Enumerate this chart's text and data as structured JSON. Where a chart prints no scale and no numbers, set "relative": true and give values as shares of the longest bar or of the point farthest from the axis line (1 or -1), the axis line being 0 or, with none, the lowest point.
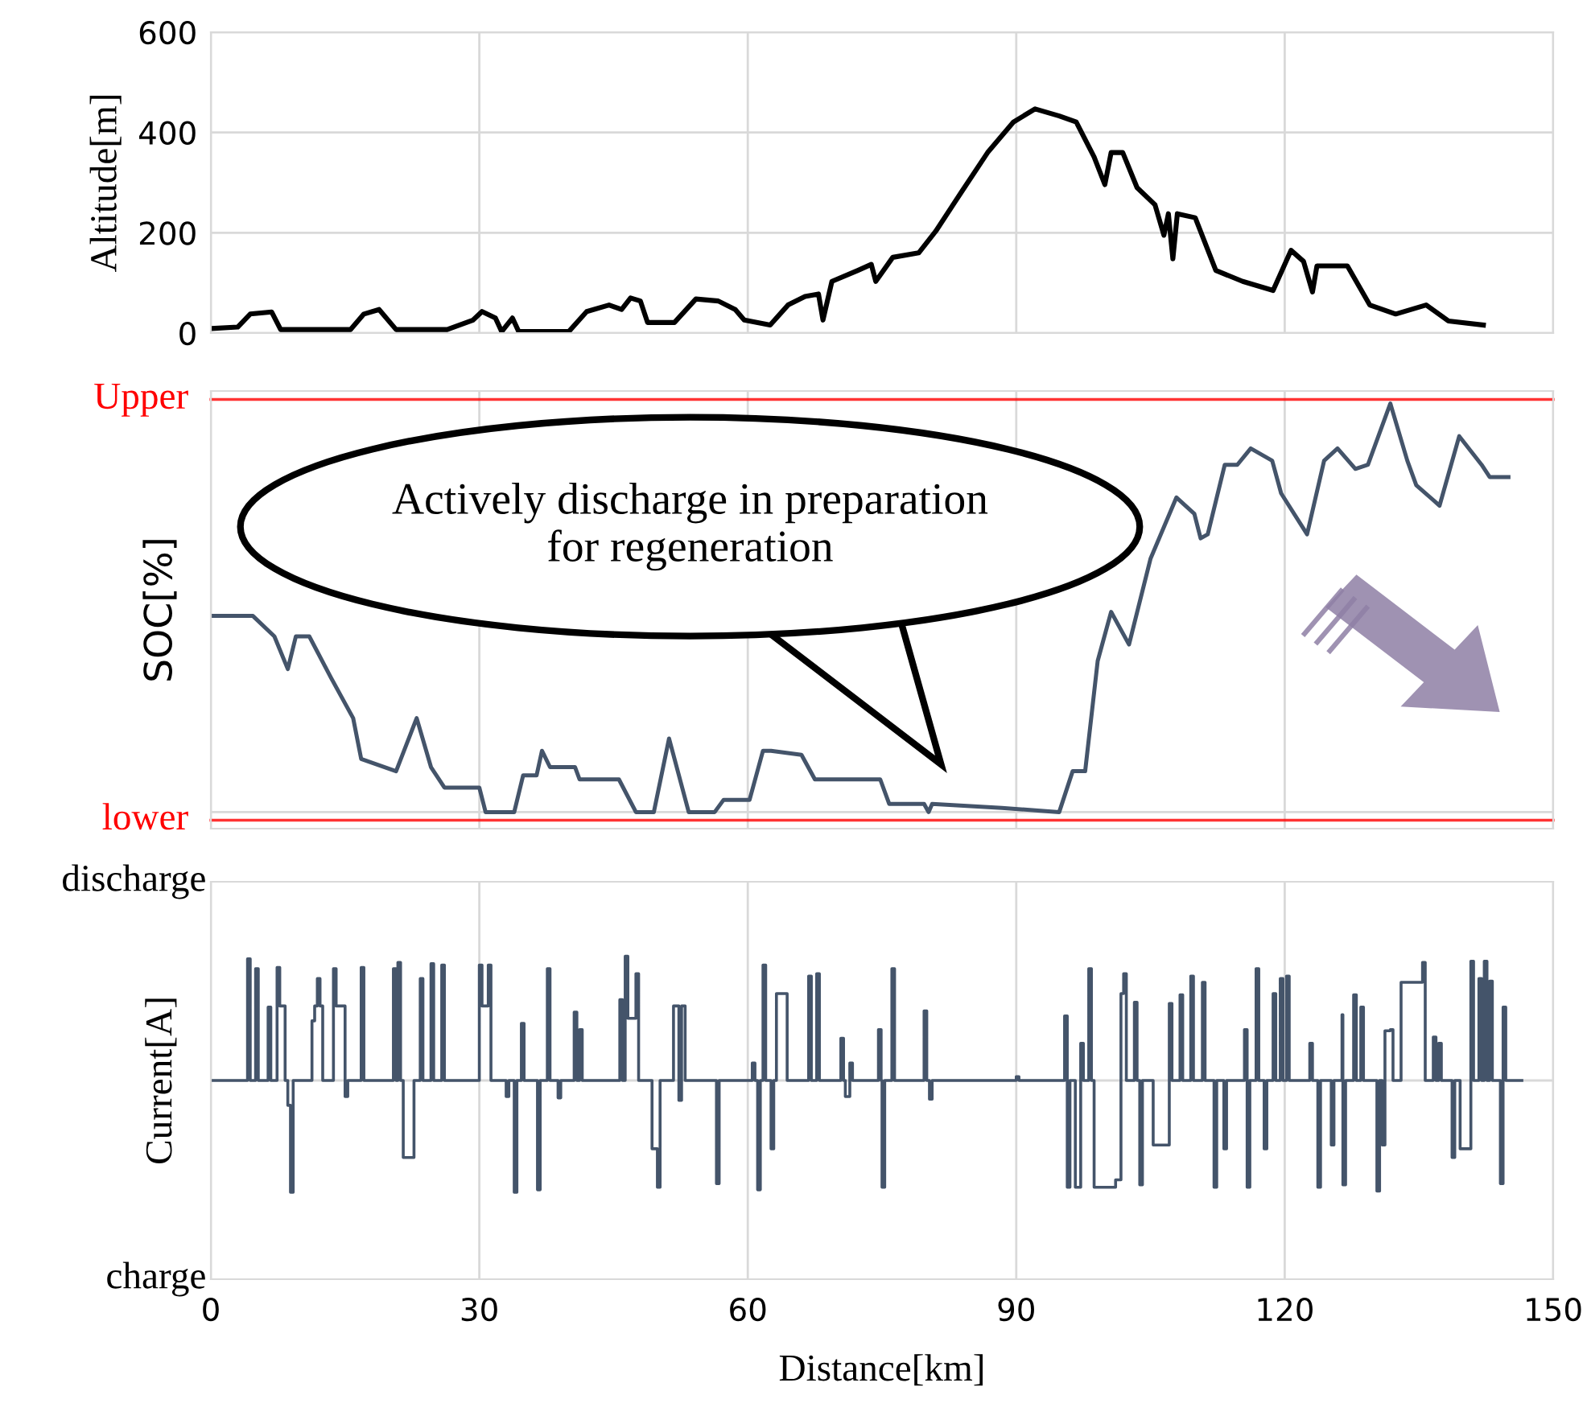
{
  "chart_data": [
    {
      "type": "line",
      "ylabel": "Altitude[m]",
      "xlim": [
        0,
        150
      ],
      "xticks": [
        0,
        30,
        60,
        90,
        120,
        150
      ],
      "ylim": [
        0,
        600
      ],
      "yticks": [
        0,
        200,
        400,
        600
      ],
      "grid": true,
      "tick_labels": "y",
      "series": [
        {
          "color": "#000000",
          "x": [
            0,
            3,
            4.4,
            6.8,
            7.8,
            15.6,
            17.1,
            18.8,
            20.7,
            26.4,
            29.3,
            30.3,
            31.8,
            32.5,
            33.7,
            34.4,
            40,
            42,
            44.5,
            45.9,
            46.9,
            48,
            48.8,
            51.8,
            54.2,
            56.7,
            58.6,
            59.6,
            62.5,
            64.5,
            66.4,
            67.9,
            68.4,
            69.4,
            72.3,
            73.8,
            74.3,
            76.2,
            79.1,
            81,
            83.9,
            86.8,
            89.7,
            92.1,
            94.8,
            96.7,
            98.7,
            99.9,
            100.6,
            101.9,
            103.5,
            105.5,
            106.5,
            107,
            107.5,
            108,
            110,
            112.3,
            115.3,
            118.7,
            120.7,
            122.1,
            123.1,
            123.6,
            127,
            129.5,
            132.4,
            135.8,
            138.3,
            142.2
          ],
          "values": [
            9,
            12,
            38,
            42,
            7,
            7,
            38,
            47,
            7,
            7,
            26,
            43,
            30,
            3,
            30,
            3,
            3,
            43,
            56,
            47,
            70,
            64,
            21,
            21,
            68,
            64,
            47,
            26,
            16,
            56,
            73,
            78,
            26,
            103,
            125,
            137,
            103,
            151,
            160,
            203,
            282,
            360,
            421,
            447,
            433,
            421,
            351,
            296,
            360,
            360,
            290,
            256,
            195,
            238,
            148,
            238,
            230,
            125,
            103,
            85,
            165,
            143,
            82,
            134,
            134,
            56,
            38,
            56,
            24,
            16
          ]
        }
      ]
    },
    {
      "type": "line",
      "ylabel": "SOC[%]",
      "relative": true,
      "xlim": [
        0,
        150
      ],
      "xticks": [
        0,
        30,
        60,
        90,
        120,
        150
      ],
      "grid": "x",
      "tick_labels": false,
      "ref_lines": [
        {
          "axis": "y",
          "value": 1.01,
          "label": "Upper",
          "color": "#ff0000"
        },
        {
          "axis": "y",
          "value": -0.02,
          "label": "lower",
          "color": "#ff0000"
        }
      ],
      "annotations": [
        "Actively discharge in preparation\nfor regeneration"
      ],
      "series": [
        {
          "color": "#44546a",
          "x": [
            0,
            4.7,
            7.1,
            8.6,
            9.5,
            11,
            13.4,
            15.9,
            16.8,
            20.7,
            23,
            24.6,
            26.1,
            30,
            30.7,
            33.9,
            34.9,
            36.4,
            37,
            37.9,
            40.7,
            41.2,
            45.6,
            47.5,
            49.5,
            51.2,
            53.4,
            56.3,
            57.3,
            60.2,
            61.7,
            62.6,
            66,
            67.5,
            74.8,
            75.8,
            79.7,
            80.2,
            80.6,
            88.4,
            94.8,
            96.3,
            97.7,
            99.1,
            100.6,
            102.6,
            105,
            107.9,
            109.9,
            110.6,
            111.4,
            113.3,
            114.7,
            116.2,
            118.6,
            119.6,
            122.5,
            124.4,
            125.9,
            127.9,
            129.3,
            131.8,
            133.7,
            134.7,
            137.3,
            139.5,
            142,
            142.9,
            145
          ],
          "values": [
            0.48,
            0.48,
            0.43,
            0.35,
            0.43,
            0.43,
            0.33,
            0.23,
            0.13,
            0.1,
            0.23,
            0.11,
            0.06,
            0.06,
            0,
            0,
            0.09,
            0.09,
            0.15,
            0.11,
            0.11,
            0.08,
            0.08,
            0,
            0,
            0.18,
            0,
            0,
            0.03,
            0.03,
            0.15,
            0.15,
            0.14,
            0.08,
            0.08,
            0.02,
            0.02,
            0,
            0.02,
            0.01,
            0,
            0.1,
            0.1,
            0.37,
            0.49,
            0.41,
            0.62,
            0.77,
            0.73,
            0.67,
            0.68,
            0.85,
            0.85,
            0.89,
            0.86,
            0.78,
            0.68,
            0.86,
            0.89,
            0.84,
            0.85,
            1,
            0.86,
            0.8,
            0.75,
            0.92,
            0.85,
            0.82,
            0.82
          ]
        }
      ]
    },
    {
      "type": "step",
      "ylabel": "Current[A]",
      "xlabel": "Distance[km]",
      "relative": true,
      "xlim": [
        0,
        150
      ],
      "xticks": [
        0,
        30,
        60,
        90,
        120,
        150
      ],
      "grid": "x",
      "tick_labels": "x",
      "annotations": [
        "discharge",
        "charge"
      ],
      "series": [
        {
          "color": "#44546a",
          "x": [
            0,
            4.1,
            4.4,
            5.0,
            5.3,
            6.4,
            6.7,
            7.4,
            7.7,
            7.8,
            8.3,
            8.6,
            8.9,
            9.2,
            11.3,
            11.6,
            11.9,
            12.2,
            12.5,
            13.7,
            14.0,
            14.3,
            14.6,
            15.0,
            15.3,
            16.8,
            17.1,
            20.4,
            20.7,
            20.9,
            21.2,
            21.5,
            22.7,
            23.4,
            23.7,
            24.6,
            24.9,
            25.8,
            26.1,
            30.0,
            30.3,
            31.0,
            31.3,
            33.0,
            33.3,
            33.9,
            34.2,
            34.7,
            35.0,
            36.5,
            36.8,
            37.6,
            37.9,
            38.8,
            39.1,
            40.6,
            40.9,
            41.2,
            41.5,
            45.7,
            46.0,
            46.3,
            46.6,
            47.5,
            47.8,
            49.3,
            49.9,
            50.2,
            51.7,
            52.3,
            52.6,
            52.7,
            53.0,
            56.5,
            56.8,
            60.5,
            60.8,
            61.1,
            61.4,
            61.7,
            62.0,
            62.6,
            62.9,
            63.2,
            64.1,
            64.4,
            66.8,
            67.1,
            67.7,
            68.0,
            70.4,
            70.7,
            70.9,
            71.4,
            71.7,
            74.6,
            74.9,
            75.0,
            75.3,
            76.1,
            76.4,
            79.7,
            80.0,
            80.3,
            80.6,
            90,
            90.3,
            95.4,
            95.7,
            96.0,
            96.6,
            97.2,
            97.5,
            98.1,
            98.4,
            98.7,
            101.1,
            101.7,
            102.0,
            102.3,
            103.2,
            103.5,
            103.8,
            104.1,
            105.3,
            106.8,
            107.1,
            107.4,
            108.3,
            108.6,
            109.5,
            109.8,
            110.8,
            111.1,
            112.1,
            112.4,
            113.2,
            113.5,
            115.5,
            115.8,
            116.1,
            116.8,
            117.1,
            117.7,
            118.0,
            118.7,
            119.0,
            119.5,
            119.8,
            120.2,
            120.5,
            122.8,
            123.1,
            123.7,
            124.0,
            125.2,
            125.5,
            126.4,
            126.5,
            126.8,
            127.7,
            128.0,
            128.5,
            128.8,
            130.3,
            130.6,
            130.9,
            131.2,
            131.8,
            132.1,
            133.0,
            134.2,
            135.4,
            135.7,
            136.6,
            136.9,
            137.2,
            137.5,
            138.7,
            139.0,
            139.6,
            140.2,
            140.8,
            141.1,
            141.7,
            142.0,
            142.3,
            142.6,
            142.9,
            143.2,
            144.1,
            144.4,
            144.7,
            146.5
          ],
          "values": [
            0,
            0.98,
            0,
            0.9,
            0,
            0.59,
            0,
            0.91,
            0.6,
            0.6,
            0,
            -0.2,
            -0.9,
            0,
            0.48,
            0.6,
            0.82,
            0.6,
            0,
            0.9,
            0.6,
            0.6,
            0.6,
            -0.13,
            0,
            0.91,
            0,
            0.9,
            0,
            0.95,
            0,
            -0.62,
            0,
            0.82,
            0,
            0.94,
            0,
            0.93,
            0,
            0.93,
            0.6,
            0.93,
            0,
            -0.13,
            0,
            -0.9,
            0,
            0.46,
            0,
            -0.88,
            0,
            0.9,
            0,
            -0.14,
            0,
            0.55,
            0,
            0.41,
            0,
            0.65,
            0,
            1.0,
            0.5,
            0.86,
            0,
            -0.55,
            -0.86,
            0,
            0.6,
            -0.16,
            0.6,
            0.6,
            0,
            -0.83,
            0,
            0.14,
            0,
            -0.88,
            0,
            0.93,
            0,
            -0.55,
            0,
            0.7,
            0.7,
            0,
            0.84,
            0,
            0.86,
            0,
            0.34,
            0,
            -0.13,
            0.14,
            0,
            0.41,
            0,
            -0.86,
            0,
            0.9,
            0,
            0.56,
            0,
            -0.15,
            0,
            0.03,
            0,
            0.52,
            -0.86,
            0,
            -0.86,
            0.3,
            0,
            0.9,
            0,
            -0.86,
            -0.8,
            0.7,
            0.86,
            0,
            0.63,
            0,
            -0.84,
            0,
            -0.52,
            -0.52,
            0.62,
            0,
            0.69,
            0,
            0.84,
            0,
            0.79,
            0,
            -0.86,
            0,
            -0.55,
            0,
            0.41,
            -0.86,
            0,
            0.9,
            0,
            -0.55,
            0,
            0.7,
            0,
            0.82,
            0,
            0.84,
            0,
            0.3,
            0,
            -0.86,
            0,
            -0.52,
            0,
            0.53,
            -0.84,
            0,
            0.69,
            0,
            0.59,
            0,
            -0.89,
            0,
            -0.52,
            0.4,
            0.41,
            0,
            0.79,
            0.79,
            0.95,
            0,
            0.35,
            0,
            0.3,
            0,
            -0.62,
            0,
            -0.55,
            -0.55,
            0.96,
            0,
            0.82,
            0,
            0.96,
            0,
            0.8,
            0,
            -0.83,
            0.59,
            0,
            0
          ]
        }
      ]
    }
  ]
}
